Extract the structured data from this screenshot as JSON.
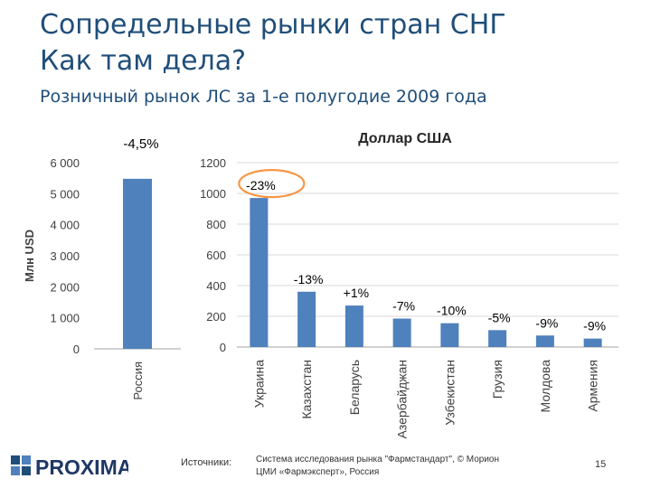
{
  "slide": {
    "title_line1": "Сопредельные рынки стран СНГ",
    "title_line2": "Как там дела?",
    "subtitle": "Розничный рынок ЛС за 1-е полугодие 2009 года",
    "footer": {
      "logo": "PROXIMA",
      "sources_label": "Источники:",
      "sources_line1": "Система исследования рынка \"Фармстандарт\", © Морион",
      "sources_line2": "ЦМИ «Фармэксперт», Россия",
      "page_number": "15"
    },
    "colors": {
      "bar": "#4f81bd",
      "title": "#1f4e79",
      "highlight_circle": "#f79646",
      "grid": "#d9d9d9"
    }
  },
  "chart_data": [
    {
      "type": "bar",
      "ylabel": "Млн USD",
      "ylim": [
        0,
        6000
      ],
      "yticks": [
        "0",
        "1 000",
        "2 000",
        "3 000",
        "4 000",
        "5 000",
        "6 000"
      ],
      "grid": false,
      "categories": [
        "Россия"
      ],
      "values": [
        5480
      ],
      "annotations": [
        "-4,5%"
      ]
    },
    {
      "type": "bar",
      "title": "Доллар США",
      "ylim": [
        0,
        1200
      ],
      "yticks": [
        "0",
        "200",
        "400",
        "600",
        "800",
        "1000",
        "1200"
      ],
      "grid": true,
      "categories": [
        "Украина",
        "Казахстан",
        "Беларусь",
        "Азербайджан",
        "Узбекистан",
        "Грузия",
        "Молдова",
        "Армения"
      ],
      "values": [
        970,
        360,
        270,
        185,
        155,
        110,
        75,
        55
      ],
      "annotations": [
        "-23%",
        "-13%",
        "+1%",
        "-7%",
        "-10%",
        "-5%",
        "-9%",
        "-9%"
      ],
      "highlighted": [
        "Украина"
      ]
    }
  ]
}
